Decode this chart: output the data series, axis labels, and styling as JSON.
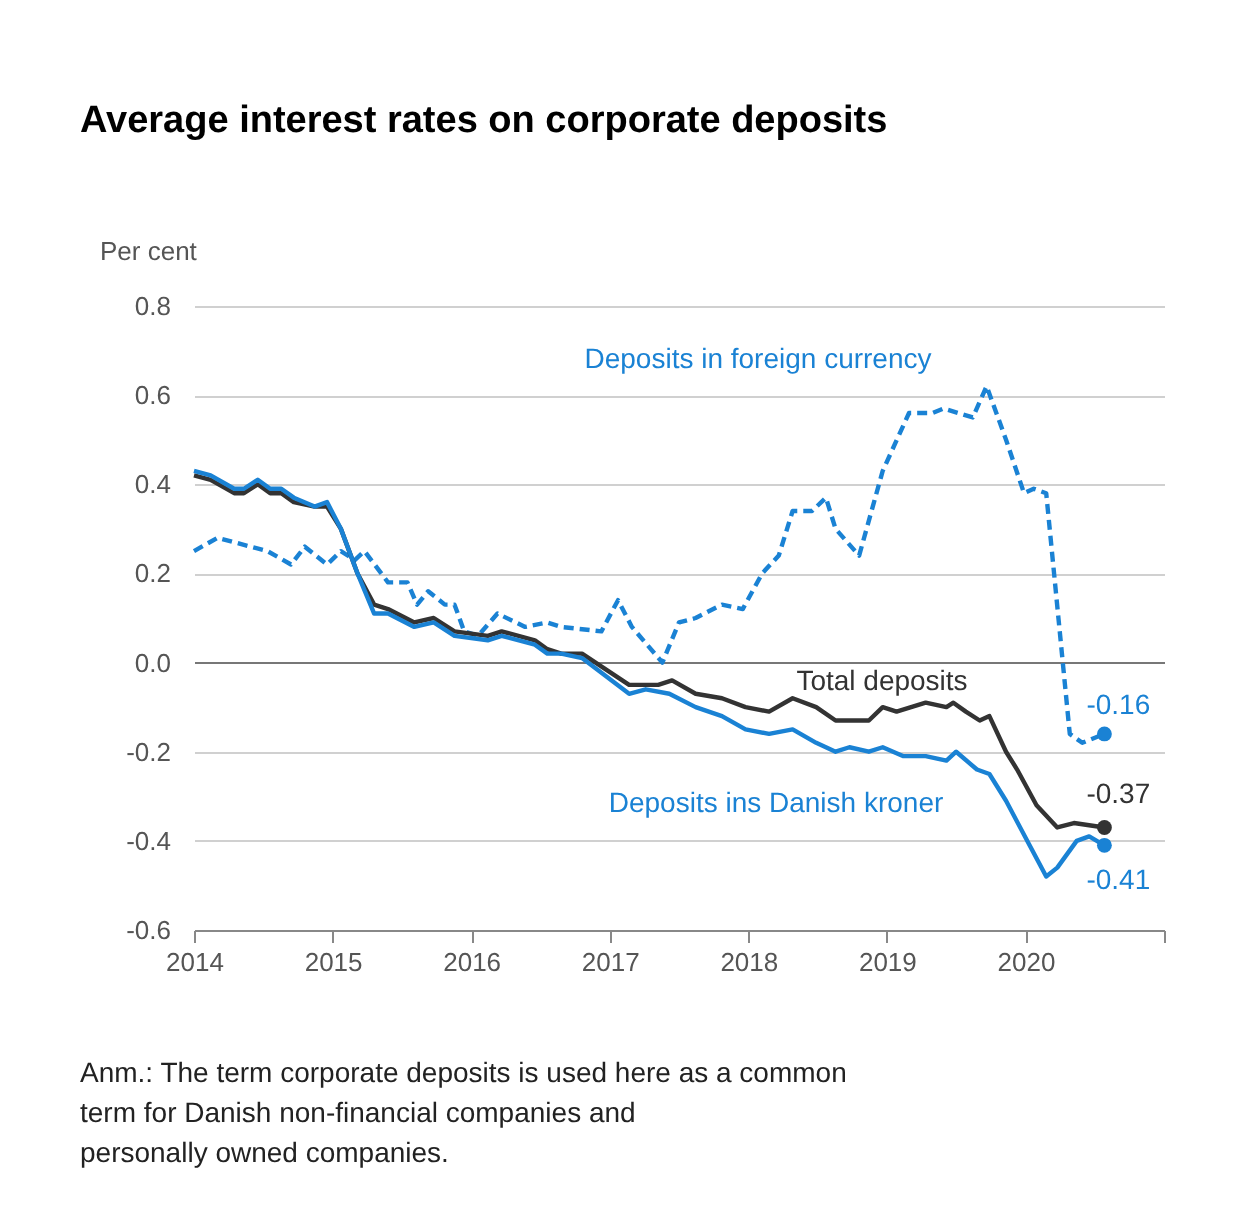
{
  "chart_data": {
    "type": "line",
    "title": "Average interest rates on corporate deposits",
    "ylabel": "Per cent",
    "xlim": [
      2014,
      2021
    ],
    "xticks": [
      2014,
      2015,
      2016,
      2017,
      2018,
      2019,
      2020,
      {
        "value": 2021,
        "label": null
      }
    ],
    "ylim": [
      -0.6,
      0.8
    ],
    "yticks": [
      -0.6,
      -0.4,
      -0.2,
      {
        "value": 0,
        "label": "0.0"
      },
      0.2,
      0.4,
      0.6,
      0.8
    ],
    "grid": "y",
    "series": [
      {
        "name": "Deposits in foreign currency",
        "color": "#1a82d4",
        "line_style": "dashed",
        "x": [
          2014.0,
          2014.17,
          2014.29,
          2014.41,
          2014.53,
          2014.7,
          2014.8,
          2014.96,
          2015.06,
          2015.16,
          2015.23,
          2015.4,
          2015.54,
          2015.61,
          2015.69,
          2015.81,
          2015.88,
          2015.95,
          2016.05,
          2016.19,
          2016.39,
          2016.55,
          2016.65,
          2016.94,
          2017.06,
          2017.16,
          2017.38,
          2017.5,
          2017.62,
          2017.81,
          2017.96,
          2018.1,
          2018.22,
          2018.32,
          2018.46,
          2018.56,
          2018.63,
          2018.8,
          2018.97,
          2019.16,
          2019.33,
          2019.41,
          2019.62,
          2019.72,
          2019.86,
          2019.99,
          2020.06,
          2020.15,
          2020.32,
          2020.41,
          2020.57
        ],
        "values": [
          0.25,
          0.28,
          0.27,
          0.26,
          0.25,
          0.22,
          0.26,
          0.22,
          0.25,
          0.23,
          0.25,
          0.18,
          0.18,
          0.13,
          0.16,
          0.13,
          0.13,
          0.07,
          0.06,
          0.11,
          0.08,
          0.09,
          0.08,
          0.07,
          0.14,
          0.08,
          0.0,
          0.09,
          0.1,
          0.13,
          0.12,
          0.2,
          0.24,
          0.34,
          0.34,
          0.37,
          0.3,
          0.24,
          0.43,
          0.56,
          0.56,
          0.57,
          0.55,
          0.62,
          0.5,
          0.38,
          0.39,
          0.38,
          -0.16,
          -0.18,
          -0.16
        ]
      },
      {
        "name": "Total deposits",
        "color": "#333333",
        "line_style": "solid",
        "x": [
          2014.0,
          2014.12,
          2014.29,
          2014.36,
          2014.46,
          2014.55,
          2014.63,
          2014.72,
          2014.87,
          2014.96,
          2015.06,
          2015.18,
          2015.3,
          2015.4,
          2015.59,
          2015.73,
          2015.88,
          2016.12,
          2016.22,
          2016.46,
          2016.55,
          2016.65,
          2016.8,
          2017.14,
          2017.35,
          2017.45,
          2017.62,
          2017.81,
          2017.98,
          2018.15,
          2018.32,
          2018.49,
          2018.63,
          2018.87,
          2018.97,
          2019.07,
          2019.28,
          2019.43,
          2019.48,
          2019.57,
          2019.67,
          2019.74,
          2019.86,
          2019.94,
          2020.08,
          2020.23,
          2020.35,
          2020.57
        ],
        "values": [
          0.42,
          0.41,
          0.38,
          0.38,
          0.4,
          0.38,
          0.38,
          0.36,
          0.35,
          0.35,
          0.3,
          0.2,
          0.13,
          0.12,
          0.09,
          0.1,
          0.07,
          0.06,
          0.07,
          0.05,
          0.03,
          0.02,
          0.02,
          -0.05,
          -0.05,
          -0.04,
          -0.07,
          -0.08,
          -0.1,
          -0.11,
          -0.08,
          -0.1,
          -0.13,
          -0.13,
          -0.1,
          -0.11,
          -0.09,
          -0.1,
          -0.09,
          -0.11,
          -0.13,
          -0.12,
          -0.2,
          -0.24,
          -0.32,
          -0.37,
          -0.36,
          -0.37
        ]
      },
      {
        "name": "Deposits ins Danish kroner",
        "color": "#1a82d4",
        "line_style": "solid",
        "x": [
          2014.0,
          2014.12,
          2014.29,
          2014.36,
          2014.46,
          2014.55,
          2014.63,
          2014.72,
          2014.87,
          2014.96,
          2015.06,
          2015.18,
          2015.3,
          2015.4,
          2015.59,
          2015.73,
          2015.88,
          2016.12,
          2016.22,
          2016.46,
          2016.55,
          2016.65,
          2016.8,
          2017.14,
          2017.26,
          2017.43,
          2017.62,
          2017.81,
          2017.98,
          2018.15,
          2018.32,
          2018.49,
          2018.63,
          2018.73,
          2018.87,
          2018.97,
          2019.12,
          2019.28,
          2019.43,
          2019.5,
          2019.65,
          2019.74,
          2019.86,
          2020.03,
          2020.15,
          2020.23,
          2020.37,
          2020.46,
          2020.57
        ],
        "values": [
          0.43,
          0.42,
          0.39,
          0.39,
          0.41,
          0.39,
          0.39,
          0.37,
          0.35,
          0.36,
          0.3,
          0.2,
          0.11,
          0.11,
          0.08,
          0.09,
          0.06,
          0.05,
          0.06,
          0.04,
          0.02,
          0.02,
          0.01,
          -0.07,
          -0.06,
          -0.07,
          -0.1,
          -0.12,
          -0.15,
          -0.16,
          -0.15,
          -0.18,
          -0.2,
          -0.19,
          -0.2,
          -0.19,
          -0.21,
          -0.21,
          -0.22,
          -0.2,
          -0.24,
          -0.25,
          -0.31,
          -0.41,
          -0.48,
          -0.46,
          -0.4,
          -0.39,
          -0.41
        ]
      },
      {
        "type": "scatter",
        "color": "#1a82d4",
        "x": [
          2020.57
        ],
        "values": [
          -0.16
        ],
        "value_labels": [
          "-0.16"
        ]
      },
      {
        "type": "scatter",
        "color": "#333333",
        "x": [
          2020.57
        ],
        "values": [
          -0.37
        ],
        "value_labels": [
          "-0.37"
        ]
      },
      {
        "type": "scatter",
        "color": "#1a82d4",
        "x": [
          2020.57
        ],
        "values": [
          -0.41
        ],
        "value_labels": [
          "-0.41"
        ]
      }
    ],
    "annotations": [
      "Anm.: The term corporate deposits is used here as a common term for Danish non-financial companies and personally owned companies."
    ]
  }
}
